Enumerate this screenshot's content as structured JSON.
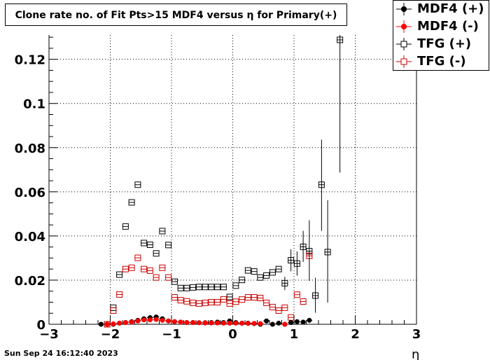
{
  "title": "Clone rate no. of Fit Pts>15 MDF4 versus η for Primary(+)",
  "timestamp": "Sun Sep 24 16:12:40 2023",
  "chart_data": {
    "type": "scatter",
    "title": "Clone rate no. of Fit Pts>15 MDF4 versus η for Primary(+)",
    "xlabel": "η",
    "ylabel": "",
    "xlim": [
      -3,
      3
    ],
    "ylim": [
      0,
      0.131
    ],
    "grid": true,
    "legend_position": "top-right",
    "x_ticks": [
      "−3",
      "−2",
      "−1",
      "0",
      "1",
      "2",
      "3"
    ],
    "y_ticks": [
      "0",
      "0.02",
      "0.04",
      "0.06",
      "0.08",
      "0.1",
      "0.12"
    ],
    "series": [
      {
        "name": "MDF4 (+)",
        "marker": "filled-circle",
        "color": "#000000",
        "points": [
          {
            "x": -2.15,
            "y": 0.0
          },
          {
            "x": -2.05,
            "y": 0.0
          },
          {
            "x": -1.95,
            "y": 0.0
          },
          {
            "x": -1.85,
            "y": 0.0005
          },
          {
            "x": -1.75,
            "y": 0.0008
          },
          {
            "x": -1.65,
            "y": 0.0012
          },
          {
            "x": -1.55,
            "y": 0.0018
          },
          {
            "x": -1.45,
            "y": 0.0025
          },
          {
            "x": -1.35,
            "y": 0.003
          },
          {
            "x": -1.25,
            "y": 0.0033
          },
          {
            "x": -1.15,
            "y": 0.0025
          },
          {
            "x": -1.05,
            "y": 0.0015
          },
          {
            "x": -0.95,
            "y": 0.0012
          },
          {
            "x": -0.85,
            "y": 0.001
          },
          {
            "x": -0.75,
            "y": 0.0008
          },
          {
            "x": -0.65,
            "y": 0.0008
          },
          {
            "x": -0.55,
            "y": 0.0007
          },
          {
            "x": -0.45,
            "y": 0.0007
          },
          {
            "x": -0.35,
            "y": 0.0008
          },
          {
            "x": -0.25,
            "y": 0.001
          },
          {
            "x": -0.15,
            "y": 0.0008
          },
          {
            "x": -0.05,
            "y": 0.0015
          },
          {
            "x": 0.05,
            "y": 0.0008
          },
          {
            "x": 0.15,
            "y": 0.0005
          },
          {
            "x": 0.25,
            "y": 0.0005
          },
          {
            "x": 0.35,
            "y": 0.0003
          },
          {
            "x": 0.45,
            "y": 0.0
          },
          {
            "x": 0.55,
            "y": 0.0015
          },
          {
            "x": 0.65,
            "y": 0.0
          },
          {
            "x": 0.75,
            "y": 0.0005
          },
          {
            "x": 0.85,
            "y": 0.0
          },
          {
            "x": 0.95,
            "y": 0.0008
          },
          {
            "x": 1.05,
            "y": 0.0012
          },
          {
            "x": 1.15,
            "y": 0.001
          },
          {
            "x": 1.25,
            "y": 0.0018
          }
        ]
      },
      {
        "name": "MDF4 (-)",
        "marker": "filled-circle",
        "color": "#ff0000",
        "points": [
          {
            "x": -2.05,
            "y": 0.0
          },
          {
            "x": -1.95,
            "y": 0.0002
          },
          {
            "x": -1.85,
            "y": 0.0005
          },
          {
            "x": -1.75,
            "y": 0.0008
          },
          {
            "x": -1.65,
            "y": 0.001
          },
          {
            "x": -1.55,
            "y": 0.0015
          },
          {
            "x": -1.45,
            "y": 0.002
          },
          {
            "x": -1.35,
            "y": 0.002
          },
          {
            "x": -1.25,
            "y": 0.0022
          },
          {
            "x": -1.15,
            "y": 0.0018
          },
          {
            "x": -1.05,
            "y": 0.0015
          },
          {
            "x": -0.95,
            "y": 0.0012
          },
          {
            "x": -0.85,
            "y": 0.001
          },
          {
            "x": -0.75,
            "y": 0.0008
          },
          {
            "x": -0.65,
            "y": 0.0008
          },
          {
            "x": -0.55,
            "y": 0.0007
          },
          {
            "x": -0.45,
            "y": 0.0006
          },
          {
            "x": -0.35,
            "y": 0.0006
          },
          {
            "x": -0.25,
            "y": 0.0006
          },
          {
            "x": -0.15,
            "y": 0.0005
          },
          {
            "x": -0.05,
            "y": 0.0005
          },
          {
            "x": 0.05,
            "y": 0.0005
          },
          {
            "x": 0.15,
            "y": 0.0005
          },
          {
            "x": 0.25,
            "y": 0.0004
          },
          {
            "x": 0.35,
            "y": 0.0004
          },
          {
            "x": 0.45,
            "y": 0.0003
          },
          {
            "x": 0.85,
            "y": 0.0
          }
        ]
      },
      {
        "name": "TFG (+)",
        "marker": "open-square",
        "color": "#000000",
        "points": [
          {
            "x": -2.05,
            "y": 0.0
          },
          {
            "x": -1.95,
            "y": 0.0075
          },
          {
            "x": -1.85,
            "y": 0.0225
          },
          {
            "x": -1.75,
            "y": 0.0443
          },
          {
            "x": -1.65,
            "y": 0.0552
          },
          {
            "x": -1.55,
            "y": 0.0632
          },
          {
            "x": -1.45,
            "y": 0.0368
          },
          {
            "x": -1.35,
            "y": 0.036
          },
          {
            "x": -1.25,
            "y": 0.0321
          },
          {
            "x": -1.15,
            "y": 0.0422
          },
          {
            "x": -1.05,
            "y": 0.0359
          },
          {
            "x": -0.95,
            "y": 0.0193
          },
          {
            "x": -0.85,
            "y": 0.0164
          },
          {
            "x": -0.75,
            "y": 0.0164
          },
          {
            "x": -0.65,
            "y": 0.0167
          },
          {
            "x": -0.55,
            "y": 0.0169
          },
          {
            "x": -0.45,
            "y": 0.0169
          },
          {
            "x": -0.35,
            "y": 0.0169
          },
          {
            "x": -0.25,
            "y": 0.0169
          },
          {
            "x": -0.15,
            "y": 0.0169
          },
          {
            "x": -0.05,
            "y": 0.0124
          },
          {
            "x": 0.05,
            "y": 0.0175
          },
          {
            "x": 0.15,
            "y": 0.0201
          },
          {
            "x": 0.25,
            "y": 0.0244
          },
          {
            "x": 0.35,
            "y": 0.0239
          },
          {
            "x": 0.45,
            "y": 0.0212
          },
          {
            "x": 0.55,
            "y": 0.0221
          },
          {
            "x": 0.65,
            "y": 0.0235
          },
          {
            "x": 0.75,
            "y": 0.025
          },
          {
            "x": 0.85,
            "y": 0.0186
          },
          {
            "x": 0.95,
            "y": 0.029
          },
          {
            "x": 1.05,
            "y": 0.0275
          },
          {
            "x": 1.15,
            "y": 0.0351
          },
          {
            "x": 1.25,
            "y": 0.0331
          },
          {
            "x": 1.35,
            "y": 0.013
          },
          {
            "x": 1.45,
            "y": 0.0632
          },
          {
            "x": 1.55,
            "y": 0.0327
          },
          {
            "x": 1.75,
            "y": 0.1288
          }
        ]
      },
      {
        "name": "TFG (-)",
        "marker": "open-square",
        "color": "#cc0000",
        "points": [
          {
            "x": -2.05,
            "y": 0.0
          },
          {
            "x": -1.95,
            "y": 0.0062
          },
          {
            "x": -1.85,
            "y": 0.0135
          },
          {
            "x": -1.75,
            "y": 0.025
          },
          {
            "x": -1.65,
            "y": 0.0256
          },
          {
            "x": -1.55,
            "y": 0.0301
          },
          {
            "x": -1.45,
            "y": 0.025
          },
          {
            "x": -1.35,
            "y": 0.0243
          },
          {
            "x": -1.25,
            "y": 0.0212
          },
          {
            "x": -1.15,
            "y": 0.0256
          },
          {
            "x": -1.05,
            "y": 0.0212
          },
          {
            "x": -0.95,
            "y": 0.0122
          },
          {
            "x": -0.85,
            "y": 0.0109
          },
          {
            "x": -0.75,
            "y": 0.0104
          },
          {
            "x": -0.65,
            "y": 0.0097
          },
          {
            "x": -0.55,
            "y": 0.0094
          },
          {
            "x": -0.45,
            "y": 0.0097
          },
          {
            "x": -0.35,
            "y": 0.01
          },
          {
            "x": -0.25,
            "y": 0.01
          },
          {
            "x": -0.15,
            "y": 0.0113
          },
          {
            "x": -0.05,
            "y": 0.0094
          },
          {
            "x": 0.05,
            "y": 0.0102
          },
          {
            "x": 0.15,
            "y": 0.0112
          },
          {
            "x": 0.25,
            "y": 0.0122
          },
          {
            "x": 0.35,
            "y": 0.0122
          },
          {
            "x": 0.45,
            "y": 0.0119
          },
          {
            "x": 0.55,
            "y": 0.0097
          },
          {
            "x": 0.65,
            "y": 0.0078
          },
          {
            "x": 0.75,
            "y": 0.0062
          },
          {
            "x": 0.85,
            "y": 0.0075
          },
          {
            "x": 0.95,
            "y": 0.0031
          },
          {
            "x": 1.05,
            "y": 0.0134
          },
          {
            "x": 1.15,
            "y": 0.0103
          },
          {
            "x": 1.25,
            "y": 0.031
          }
        ]
      }
    ],
    "error_bars_tfg_plus": [
      {
        "x": 1.15,
        "lo": 0.0282,
        "hi": 0.0423
      },
      {
        "x": 1.25,
        "lo": 0.0197,
        "hi": 0.0471
      },
      {
        "x": 1.35,
        "lo": 0.0052,
        "hi": 0.0211
      },
      {
        "x": 1.45,
        "lo": 0.0423,
        "hi": 0.0836
      },
      {
        "x": 1.55,
        "lo": 0.0098,
        "hi": 0.0562
      },
      {
        "x": 1.75,
        "lo": 0.0687,
        "hi": 0.131
      },
      {
        "x": 0.85,
        "lo": 0.0155,
        "hi": 0.0215
      },
      {
        "x": 0.95,
        "lo": 0.024,
        "hi": 0.034
      },
      {
        "x": 1.05,
        "lo": 0.022,
        "hi": 0.033
      }
    ]
  },
  "legend": {
    "items": [
      "MDF4 (+)",
      "MDF4 (-)",
      "TFG (+)",
      "TFG (-)"
    ]
  }
}
